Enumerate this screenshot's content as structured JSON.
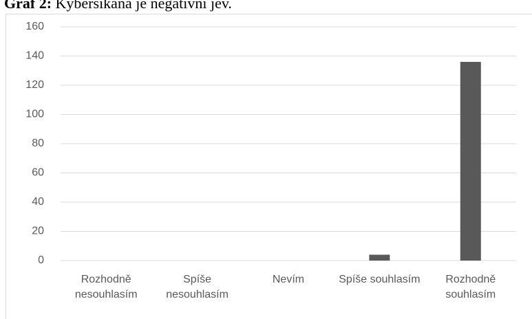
{
  "chart_data": {
    "type": "bar",
    "title_label": "Graf 2:",
    "title": "Kyberšikana je negativní jev.",
    "categories": [
      "Rozhodně nesouhlasím",
      "Spíše nesouhlasím",
      "Nevím",
      "Spíše souhlasím",
      "Rozhodně souhlasím"
    ],
    "values": [
      0,
      0,
      0,
      4,
      136
    ],
    "color": "#595959",
    "ylim": [
      0,
      160
    ],
    "yticks": [
      0,
      20,
      40,
      60,
      80,
      100,
      120,
      140,
      160
    ],
    "grid": true
  }
}
